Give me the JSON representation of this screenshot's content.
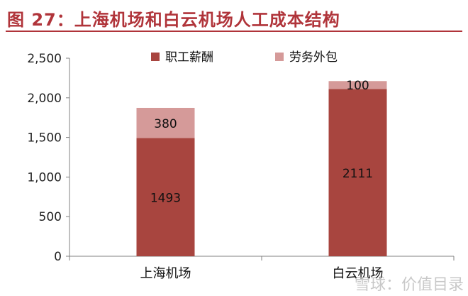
{
  "page": {
    "title": "图 27：上海机场和白云机场人工成本结构",
    "watermark": "雪球：价值目录"
  },
  "chart_data": {
    "type": "bar",
    "stacked": true,
    "title": "图 27：上海机场和白云机场人工成本结构",
    "categories": [
      "上海机场",
      "白云机场"
    ],
    "series": [
      {
        "name": "职工薪酬",
        "values": [
          1493,
          2111
        ],
        "color": "#a8453f"
      },
      {
        "name": "劳务外包",
        "values": [
          380,
          100
        ],
        "color": "#d59a99"
      }
    ],
    "ylim": [
      0,
      2500
    ],
    "yticks": [
      0,
      500,
      1000,
      1500,
      2000,
      2500
    ],
    "ytick_labels": [
      "0",
      "500",
      "1,000",
      "1,500",
      "2,000",
      "2,500"
    ],
    "xlabel": "",
    "ylabel": "",
    "grid": false,
    "legend_position": "top-center"
  }
}
